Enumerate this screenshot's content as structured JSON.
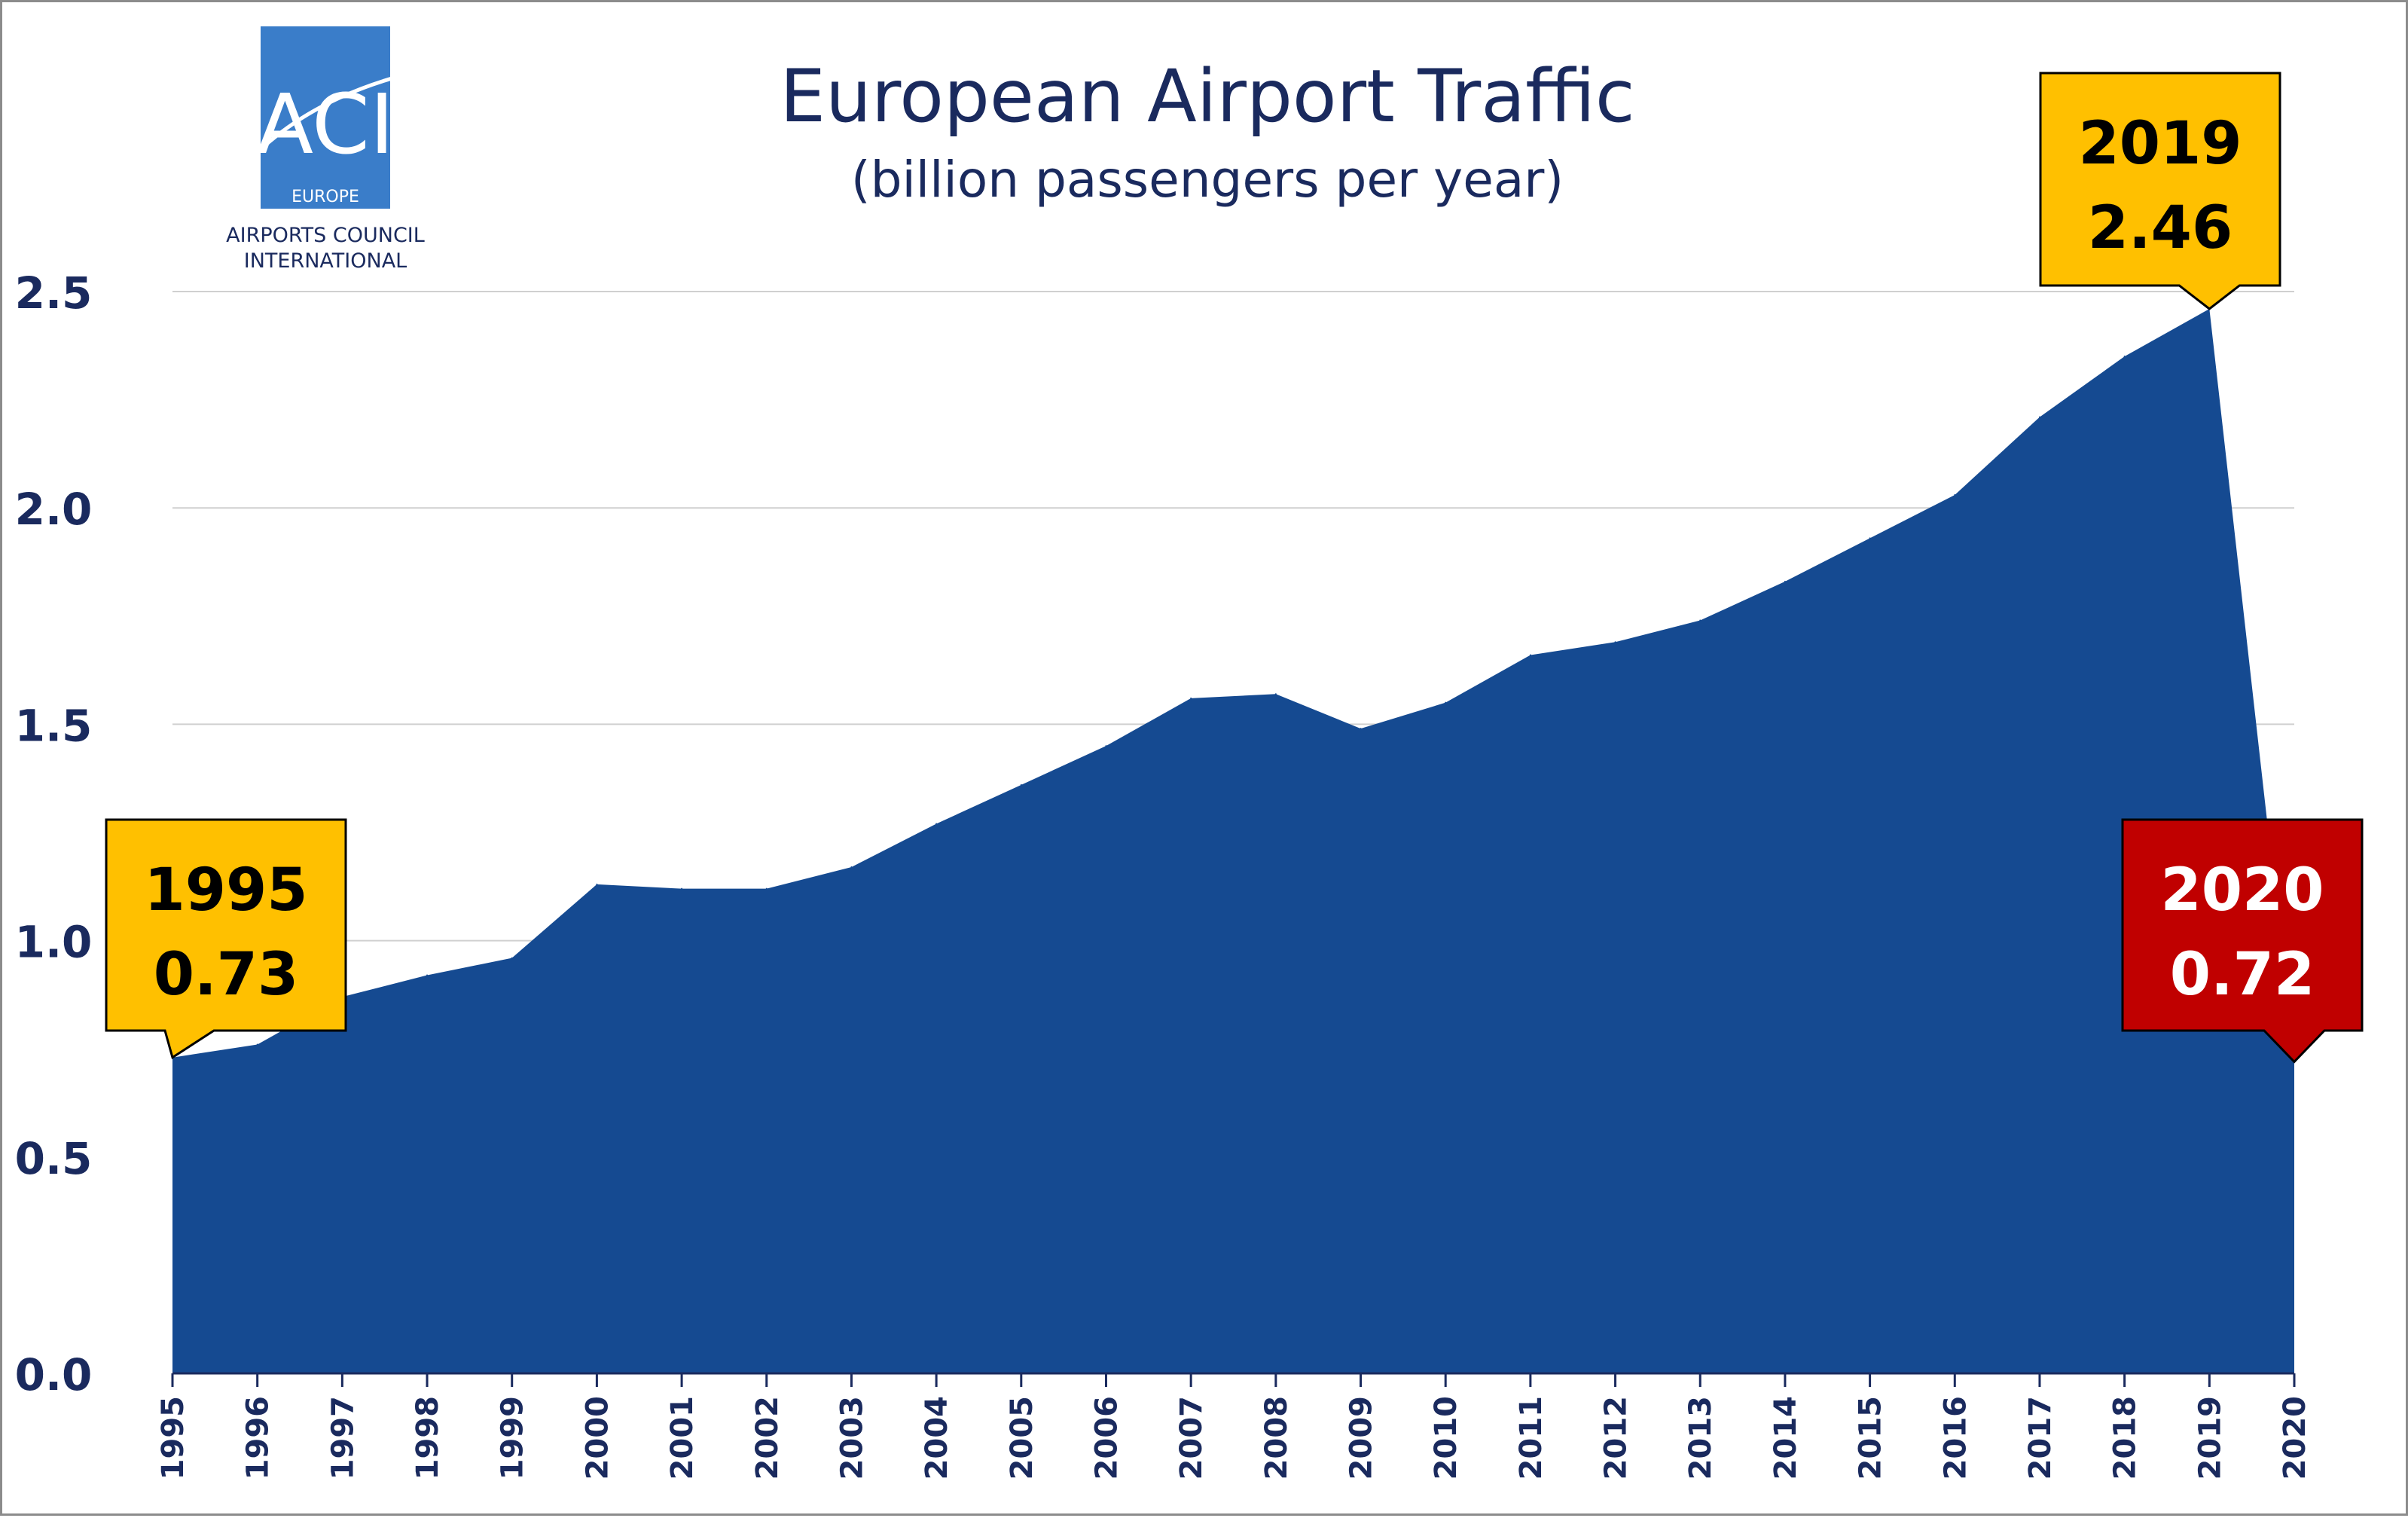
{
  "logo": {
    "mark": "ACI",
    "region": "EUROPE",
    "line1": "AIRPORTS COUNCIL",
    "line2": "INTERNATIONAL",
    "color": "#3a7dc9"
  },
  "chart_data": {
    "type": "area",
    "title": "European Airport Traffic",
    "subtitle": "(billion passengers per year)",
    "xlabel": "",
    "ylabel": "",
    "x": [
      "1995",
      "1996",
      "1997",
      "1998",
      "1999",
      "2000",
      "2001",
      "2002",
      "2003",
      "2004",
      "2005",
      "2006",
      "2007",
      "2008",
      "2009",
      "2010",
      "2011",
      "2012",
      "2013",
      "2014",
      "2015",
      "2016",
      "2017",
      "2018",
      "2019",
      "2020"
    ],
    "values": [
      0.73,
      0.76,
      0.87,
      0.92,
      0.96,
      1.13,
      1.12,
      1.12,
      1.17,
      1.27,
      1.36,
      1.45,
      1.56,
      1.57,
      1.49,
      1.55,
      1.66,
      1.69,
      1.74,
      1.83,
      1.93,
      2.03,
      2.21,
      2.35,
      2.46,
      0.72
    ],
    "ylim": [
      0,
      2.5
    ],
    "yticks": [
      "0.0",
      "0.5",
      "1.0",
      "1.5",
      "2.0",
      "2.5"
    ],
    "grid": true,
    "fill_color": "#154a91",
    "callouts": [
      {
        "year": "1995",
        "value": "0.73",
        "fill": "#ffc000",
        "text_color": "#000000"
      },
      {
        "year": "2019",
        "value": "2.46",
        "fill": "#ffc000",
        "text_color": "#000000"
      },
      {
        "year": "2020",
        "value": "0.72",
        "fill": "#c00000",
        "text_color": "#ffffff"
      }
    ]
  }
}
